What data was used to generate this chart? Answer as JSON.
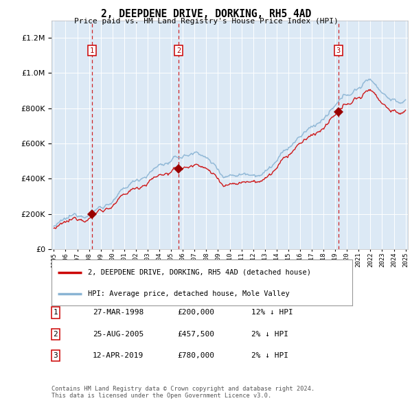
{
  "title": "2, DEEPDENE DRIVE, DORKING, RH5 4AD",
  "subtitle": "Price paid vs. HM Land Registry's House Price Index (HPI)",
  "hpi_label": "HPI: Average price, detached house, Mole Valley",
  "property_label": "2, DEEPDENE DRIVE, DORKING, RH5 4AD (detached house)",
  "sale_dates": [
    "27-MAR-1998",
    "25-AUG-2005",
    "12-APR-2019"
  ],
  "sale_prices": [
    200000,
    457500,
    780000
  ],
  "sale_hpi_pct": [
    "12% ↓ HPI",
    "2% ↓ HPI",
    "2% ↓ HPI"
  ],
  "sale_years": [
    1998.23,
    2005.65,
    2019.28
  ],
  "year_start": 1995,
  "year_end": 2025,
  "ylim_max": 1300000,
  "ylim_min": 0,
  "yticks": [
    0,
    200000,
    400000,
    600000,
    800000,
    1000000,
    1200000
  ],
  "bg_color": "#dce9f5",
  "line_color_red": "#cc0000",
  "line_color_blue": "#8ab4d4",
  "grid_color": "#ffffff",
  "marker_color": "#990000",
  "vline_color": "#cc0000",
  "footer": "Contains HM Land Registry data © Crown copyright and database right 2024.\nThis data is licensed under the Open Government Licence v3.0."
}
